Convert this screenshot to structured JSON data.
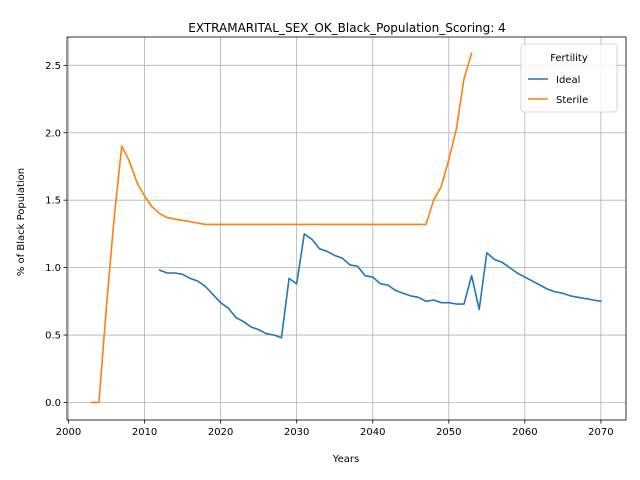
{
  "chart_data": {
    "type": "line",
    "title": "EXTRAMARITAL_SEX_OK_Black_Population_Scoring: 4",
    "xlabel": "Years",
    "ylabel": "% of Black Population",
    "xlim": [
      1999.8,
      2073.3
    ],
    "ylim": [
      -0.13,
      2.71
    ],
    "xticks": [
      2000,
      2010,
      2020,
      2030,
      2040,
      2050,
      2060,
      2070
    ],
    "yticks": [
      0.0,
      0.5,
      1.0,
      1.5,
      2.0,
      2.5
    ],
    "grid": true,
    "legend": {
      "title": "Fertility",
      "placement": "top-right"
    },
    "series": [
      {
        "name": "Ideal",
        "color": "#1f77b4",
        "points": [
          [
            2012,
            0.98
          ],
          [
            2013,
            0.96
          ],
          [
            2014,
            0.96
          ],
          [
            2015,
            0.95
          ],
          [
            2016,
            0.92
          ],
          [
            2017,
            0.9
          ],
          [
            2018,
            0.86
          ],
          [
            2019,
            0.8
          ],
          [
            2020,
            0.74
          ],
          [
            2021,
            0.7
          ],
          [
            2022,
            0.63
          ],
          [
            2023,
            0.6
          ],
          [
            2024,
            0.56
          ],
          [
            2025,
            0.54
          ],
          [
            2026,
            0.51
          ],
          [
            2027,
            0.5
          ],
          [
            2028,
            0.48
          ],
          [
            2029,
            0.92
          ],
          [
            2030,
            0.88
          ],
          [
            2031,
            1.25
          ],
          [
            2032,
            1.21
          ],
          [
            2033,
            1.14
          ],
          [
            2034,
            1.12
          ],
          [
            2035,
            1.09
          ],
          [
            2036,
            1.07
          ],
          [
            2037,
            1.02
          ],
          [
            2038,
            1.01
          ],
          [
            2039,
            0.94
          ],
          [
            2040,
            0.93
          ],
          [
            2041,
            0.88
          ],
          [
            2042,
            0.87
          ],
          [
            2043,
            0.83
          ],
          [
            2044,
            0.81
          ],
          [
            2045,
            0.79
          ],
          [
            2046,
            0.78
          ],
          [
            2047,
            0.75
          ],
          [
            2048,
            0.76
          ],
          [
            2049,
            0.74
          ],
          [
            2050,
            0.74
          ],
          [
            2051,
            0.73
          ],
          [
            2052,
            0.73
          ],
          [
            2053,
            0.94
          ],
          [
            2054,
            0.69
          ],
          [
            2055,
            1.11
          ],
          [
            2056,
            1.06
          ],
          [
            2057,
            1.04
          ],
          [
            2058,
            1.0
          ],
          [
            2059,
            0.96
          ],
          [
            2060,
            0.93
          ],
          [
            2061,
            0.9
          ],
          [
            2062,
            0.87
          ],
          [
            2063,
            0.84
          ],
          [
            2064,
            0.82
          ],
          [
            2065,
            0.81
          ],
          [
            2066,
            0.79
          ],
          [
            2067,
            0.78
          ],
          [
            2068,
            0.77
          ],
          [
            2069,
            0.76
          ],
          [
            2070,
            0.75
          ]
        ]
      },
      {
        "name": "Sterile",
        "color": "#ff7f0e",
        "points": [
          [
            2003,
            0.0
          ],
          [
            2004,
            0.0
          ],
          [
            2005,
            0.72
          ],
          [
            2006,
            1.37
          ],
          [
            2007,
            1.9
          ],
          [
            2008,
            1.79
          ],
          [
            2009,
            1.63
          ],
          [
            2010,
            1.53
          ],
          [
            2011,
            1.45
          ],
          [
            2012,
            1.4
          ],
          [
            2013,
            1.37
          ],
          [
            2014,
            1.36
          ],
          [
            2015,
            1.35
          ],
          [
            2016,
            1.34
          ],
          [
            2017,
            1.33
          ],
          [
            2018,
            1.32
          ],
          [
            2020,
            1.32
          ],
          [
            2030,
            1.32
          ],
          [
            2040,
            1.32
          ],
          [
            2047,
            1.32
          ],
          [
            2048,
            1.5
          ],
          [
            2049,
            1.6
          ],
          [
            2050,
            1.8
          ],
          [
            2051,
            2.03
          ],
          [
            2052,
            2.4
          ],
          [
            2053,
            2.59
          ]
        ]
      }
    ]
  }
}
